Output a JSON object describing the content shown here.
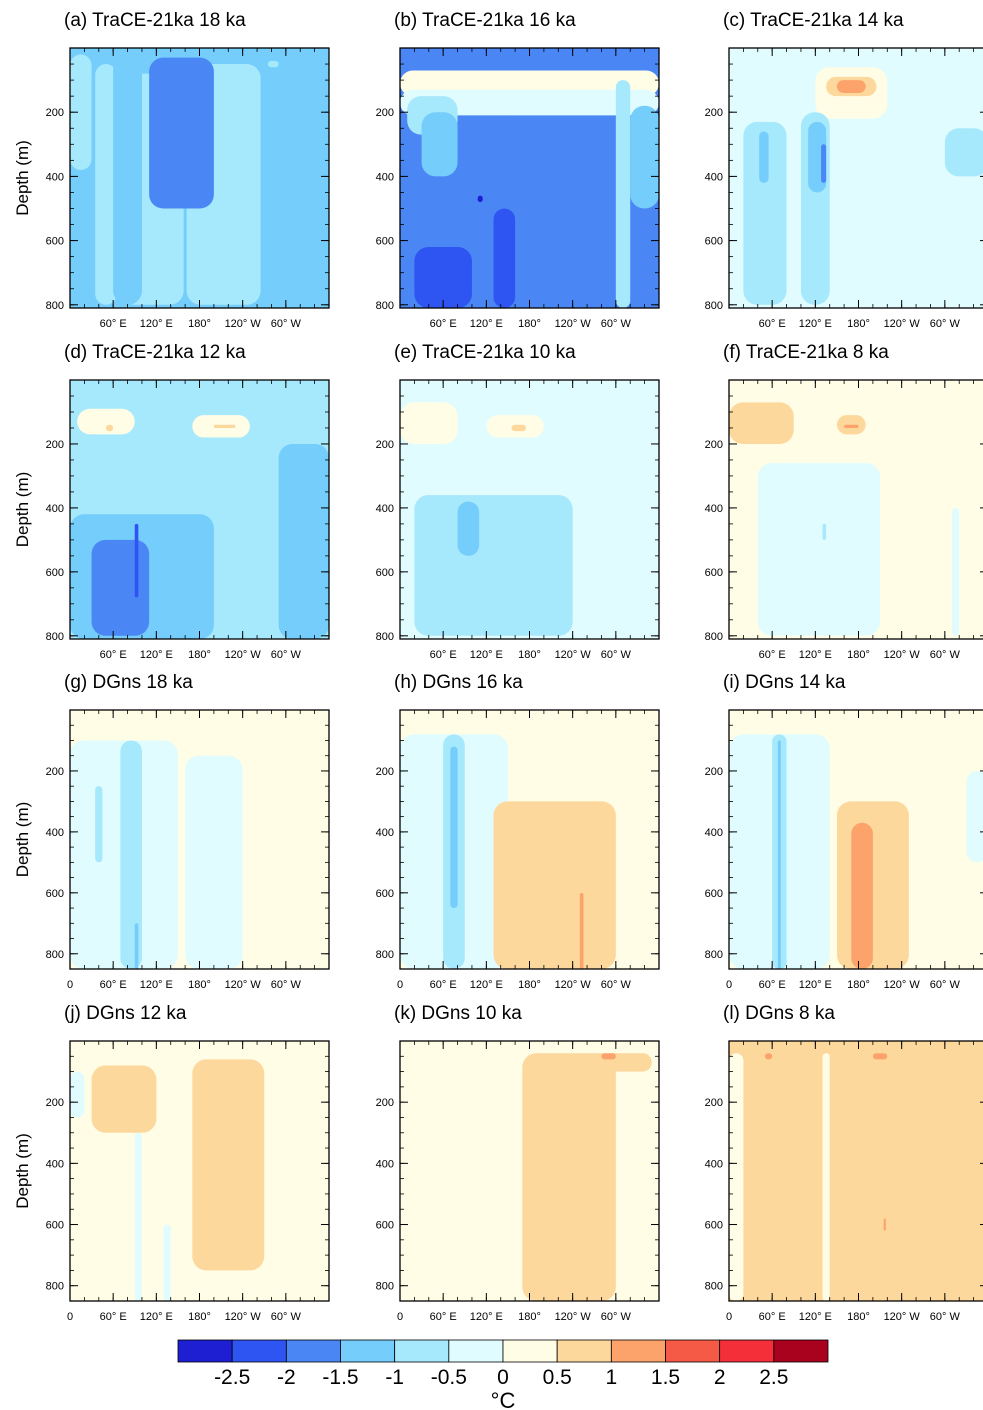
{
  "chart_data": {
    "type": "heatmap",
    "description_axes": {
      "ylabel": "Depth (m)",
      "x_tick_labels": [
        "60° E",
        "120° E",
        "180°",
        "120° W",
        "60° W"
      ],
      "x_tick_labels_bottom_rows": [
        "0",
        "60° E",
        "120° E",
        "180°",
        "120° W",
        "60° W"
      ],
      "y_ticks_top_rows": [
        200,
        400,
        600,
        800
      ],
      "y_ticks_bottom_rows": [
        200,
        400,
        600,
        800
      ],
      "depth_range_top_rows": [
        0,
        810
      ],
      "depth_range_bottom_rows": [
        0,
        850
      ],
      "longitude_range": [
        0,
        360
      ]
    },
    "colorbar": {
      "unit": "°C",
      "tick_labels": [
        "-2.5",
        "-2",
        "-1.5",
        "-1",
        "-0.5",
        "0",
        "0.5",
        "1",
        "1.5",
        "2",
        "2.5"
      ],
      "levels": [
        -3,
        -2.5,
        -2,
        -1.5,
        -1,
        -0.5,
        0,
        0.5,
        1,
        1.5,
        2,
        2.5,
        3
      ],
      "colors": [
        "#1e1ed2",
        "#2e55f2",
        "#4b87f4",
        "#74cdfa",
        "#a6e8fc",
        "#e0fcff",
        "#fffde6",
        "#fdd89c",
        "#fca36c",
        "#f55a46",
        "#f52f3a",
        "#a8021e"
      ]
    },
    "panels": [
      {
        "title": "(a) TraCE-21ka 18 ka",
        "bg_level": -1.5,
        "regions": [
          [
            -1,
            0,
            380,
            30,
            20
          ],
          [
            -1,
            35,
            800,
            65,
            50
          ],
          [
            -1,
            70,
            800,
            158,
            80
          ],
          [
            -1,
            162,
            800,
            265,
            50
          ],
          [
            -2,
            110,
            500,
            200,
            30
          ],
          [
            -1.5,
            60,
            800,
            100,
            25
          ],
          [
            -1,
            275,
            60,
            290,
            40
          ],
          [
            0,
            287,
            810,
            293,
            810
          ]
        ]
      },
      {
        "title": "(b) TraCE-21ka 16 ka",
        "bg_level": -2,
        "regions": [
          [
            0,
            0,
            150,
            360,
            70
          ],
          [
            -0.5,
            0,
            210,
            360,
            130
          ],
          [
            -1,
            10,
            270,
            80,
            150
          ],
          [
            -1.5,
            30,
            400,
            80,
            200
          ],
          [
            -2.5,
            20,
            810,
            100,
            620
          ],
          [
            -2.5,
            130,
            810,
            160,
            500
          ],
          [
            -3,
            108,
            480,
            115,
            460
          ],
          [
            -1,
            300,
            810,
            320,
            100
          ],
          [
            -1.5,
            320,
            500,
            360,
            180
          ],
          [
            0,
            298,
            810,
            306,
            810
          ]
        ]
      },
      {
        "title": "(c) TraCE-21ka 14 ka",
        "bg_level": -0.5,
        "regions": [
          [
            0,
            120,
            220,
            220,
            60
          ],
          [
            0.5,
            135,
            150,
            205,
            90
          ],
          [
            1,
            150,
            140,
            190,
            100
          ],
          [
            -1,
            20,
            800,
            80,
            230
          ],
          [
            -1.5,
            42,
            420,
            55,
            260
          ],
          [
            -1,
            100,
            800,
            140,
            200
          ],
          [
            -1.5,
            110,
            450,
            135,
            230
          ],
          [
            -2,
            128,
            420,
            135,
            300
          ],
          [
            -1,
            300,
            400,
            360,
            250
          ],
          [
            0,
            300,
            810,
            306,
            810
          ]
        ]
      },
      {
        "title": "(d) TraCE-21ka 12 ka",
        "bg_level": -1,
        "regions": [
          [
            0,
            10,
            170,
            90,
            90
          ],
          [
            0.5,
            50,
            160,
            60,
            140
          ],
          [
            0,
            170,
            180,
            250,
            110
          ],
          [
            0.5,
            200,
            150,
            230,
            140
          ],
          [
            -1.5,
            0,
            810,
            200,
            420
          ],
          [
            -2,
            30,
            800,
            110,
            500
          ],
          [
            -2.5,
            90,
            680,
            95,
            450
          ],
          [
            -1.5,
            290,
            810,
            360,
            200
          ],
          [
            0,
            287,
            810,
            293,
            810
          ]
        ]
      },
      {
        "title": "(e) TraCE-21ka 10 ka",
        "bg_level": -0.5,
        "regions": [
          [
            0,
            0,
            200,
            80,
            70
          ],
          [
            0,
            120,
            180,
            200,
            110
          ],
          [
            0.5,
            155,
            160,
            175,
            140
          ],
          [
            -1,
            20,
            800,
            240,
            360
          ],
          [
            -1.5,
            80,
            550,
            110,
            380
          ],
          [
            0,
            250,
            810,
            260,
            810
          ],
          [
            0,
            298,
            810,
            306,
            810
          ]
        ]
      },
      {
        "title": "(f) TraCE-21ka 8 ka",
        "bg_level": 0,
        "regions": [
          [
            0.5,
            0,
            200,
            90,
            70
          ],
          [
            0.5,
            150,
            170,
            190,
            110
          ],
          [
            1,
            160,
            150,
            180,
            140
          ],
          [
            -0.5,
            40,
            800,
            210,
            260
          ],
          [
            -1,
            130,
            500,
            135,
            450
          ],
          [
            -0.5,
            310,
            800,
            320,
            400
          ],
          [
            0,
            298,
            810,
            306,
            810
          ]
        ]
      },
      {
        "title": "(g) DGns 18 ka",
        "bg_level": 0,
        "regions": [
          [
            -0.5,
            0,
            850,
            150,
            100
          ],
          [
            -0.5,
            160,
            850,
            240,
            150
          ],
          [
            -1,
            35,
            500,
            45,
            250
          ],
          [
            -1,
            70,
            850,
            100,
            100
          ],
          [
            -1.5,
            90,
            850,
            95,
            700
          ],
          [
            0,
            290,
            850,
            298,
            850
          ]
        ]
      },
      {
        "title": "(h) DGns 16 ka",
        "bg_level": 0,
        "regions": [
          [
            -0.5,
            0,
            850,
            150,
            80
          ],
          [
            -1,
            60,
            850,
            90,
            80
          ],
          [
            -1.5,
            70,
            650,
            80,
            120
          ],
          [
            0.5,
            130,
            850,
            300,
            300
          ],
          [
            1,
            250,
            850,
            255,
            600
          ],
          [
            0,
            298,
            850,
            306,
            850
          ]
        ]
      },
      {
        "title": "(i) DGns 14 ka",
        "bg_level": 0,
        "regions": [
          [
            -0.5,
            0,
            850,
            140,
            80
          ],
          [
            -1,
            60,
            850,
            80,
            80
          ],
          [
            -1.5,
            68,
            850,
            72,
            100
          ],
          [
            0.5,
            150,
            850,
            250,
            300
          ],
          [
            1,
            170,
            850,
            200,
            370
          ],
          [
            -0.5,
            330,
            500,
            360,
            200
          ],
          [
            0,
            300,
            850,
            306,
            850
          ]
        ]
      },
      {
        "title": "(j) DGns 12 ka",
        "bg_level": 0,
        "regions": [
          [
            -0.5,
            0,
            250,
            20,
            100
          ],
          [
            0.5,
            30,
            300,
            120,
            80
          ],
          [
            0.5,
            170,
            750,
            270,
            60
          ],
          [
            -0.5,
            90,
            850,
            100,
            300
          ],
          [
            -0.5,
            130,
            850,
            140,
            600
          ],
          [
            0,
            290,
            850,
            298,
            850
          ]
        ]
      },
      {
        "title": "(k) DGns 10 ka",
        "bg_level": 0,
        "regions": [
          [
            0.5,
            170,
            850,
            300,
            40
          ],
          [
            0.5,
            280,
            100,
            350,
            40
          ],
          [
            1,
            280,
            60,
            300,
            40
          ],
          [
            0,
            298,
            850,
            306,
            850
          ]
        ]
      },
      {
        "title": "(l) DGns 8 ka",
        "bg_level": 0.5,
        "regions": [
          [
            0,
            0,
            850,
            20,
            40
          ],
          [
            0,
            130,
            850,
            140,
            40
          ],
          [
            1,
            50,
            60,
            60,
            40
          ],
          [
            1,
            200,
            60,
            220,
            40
          ],
          [
            1,
            215,
            620,
            218,
            580
          ],
          [
            0,
            298,
            850,
            306,
            850
          ]
        ]
      }
    ]
  }
}
